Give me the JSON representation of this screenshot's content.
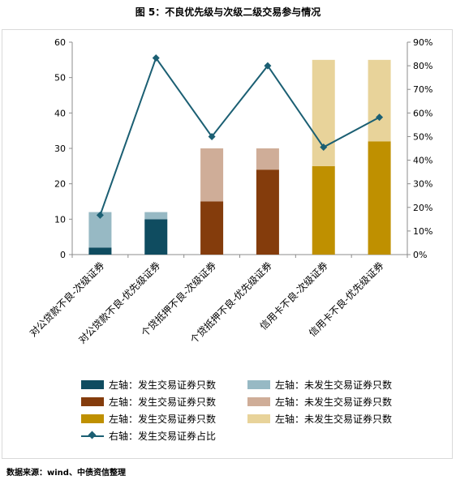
{
  "title": "图 5：不良优先级与次级二级交易参与情况",
  "source": "数据来源：wind、中债资信整理",
  "colors": {
    "corp_traded": "#0f4c60",
    "corp_untraded": "#97b9c4",
    "mort_traded": "#843c0c",
    "mort_untraded": "#cfad98",
    "card_traded": "#bf9000",
    "card_untraded": "#e8d39a",
    "ratio_line": "#1b5f73"
  },
  "chart_data": {
    "type": "bar",
    "stacked": true,
    "categories": [
      "对公贷款不良-次级证券",
      "对公贷款不良-优先级证券",
      "个贷抵押不良-次级证券",
      "个贷抵押不良-优先级证券",
      "信用卡不良-次级证券",
      "信用卡不良-优先级证券"
    ],
    "traded": [
      2,
      10,
      15,
      24,
      25,
      32
    ],
    "untraded": [
      10,
      2,
      15,
      6,
      30,
      23
    ],
    "ratio_pct": [
      16.7,
      83.3,
      50,
      80,
      45.5,
      58.2
    ],
    "left_axis": {
      "min": 0,
      "max": 60,
      "ticks": [
        "0",
        "10",
        "20",
        "30",
        "40",
        "50",
        "60"
      ]
    },
    "right_axis": {
      "min": 0,
      "max": 90,
      "ticks": [
        "0%",
        "10%",
        "20%",
        "30%",
        "40%",
        "50%",
        "60%",
        "70%",
        "80%",
        "90%"
      ]
    },
    "grid": false,
    "legend_position": "bottom"
  },
  "legend": [
    {
      "label": "左轴：发生交易证券只数",
      "color": "#0f4c60",
      "kind": "bar"
    },
    {
      "label": "左轴：未发生交易证券只数",
      "color": "#97b9c4",
      "kind": "bar"
    },
    {
      "label": "左轴：发生交易证券只数",
      "color": "#843c0c",
      "kind": "bar"
    },
    {
      "label": "左轴：未发生交易证券只数",
      "color": "#cfad98",
      "kind": "bar"
    },
    {
      "label": "左轴：发生交易证券只数",
      "color": "#bf9000",
      "kind": "bar"
    },
    {
      "label": "左轴：未发生交易证券只数",
      "color": "#e8d39a",
      "kind": "bar"
    },
    {
      "label": "右轴：发生交易证券占比",
      "color": "#1b5f73",
      "kind": "line"
    }
  ]
}
